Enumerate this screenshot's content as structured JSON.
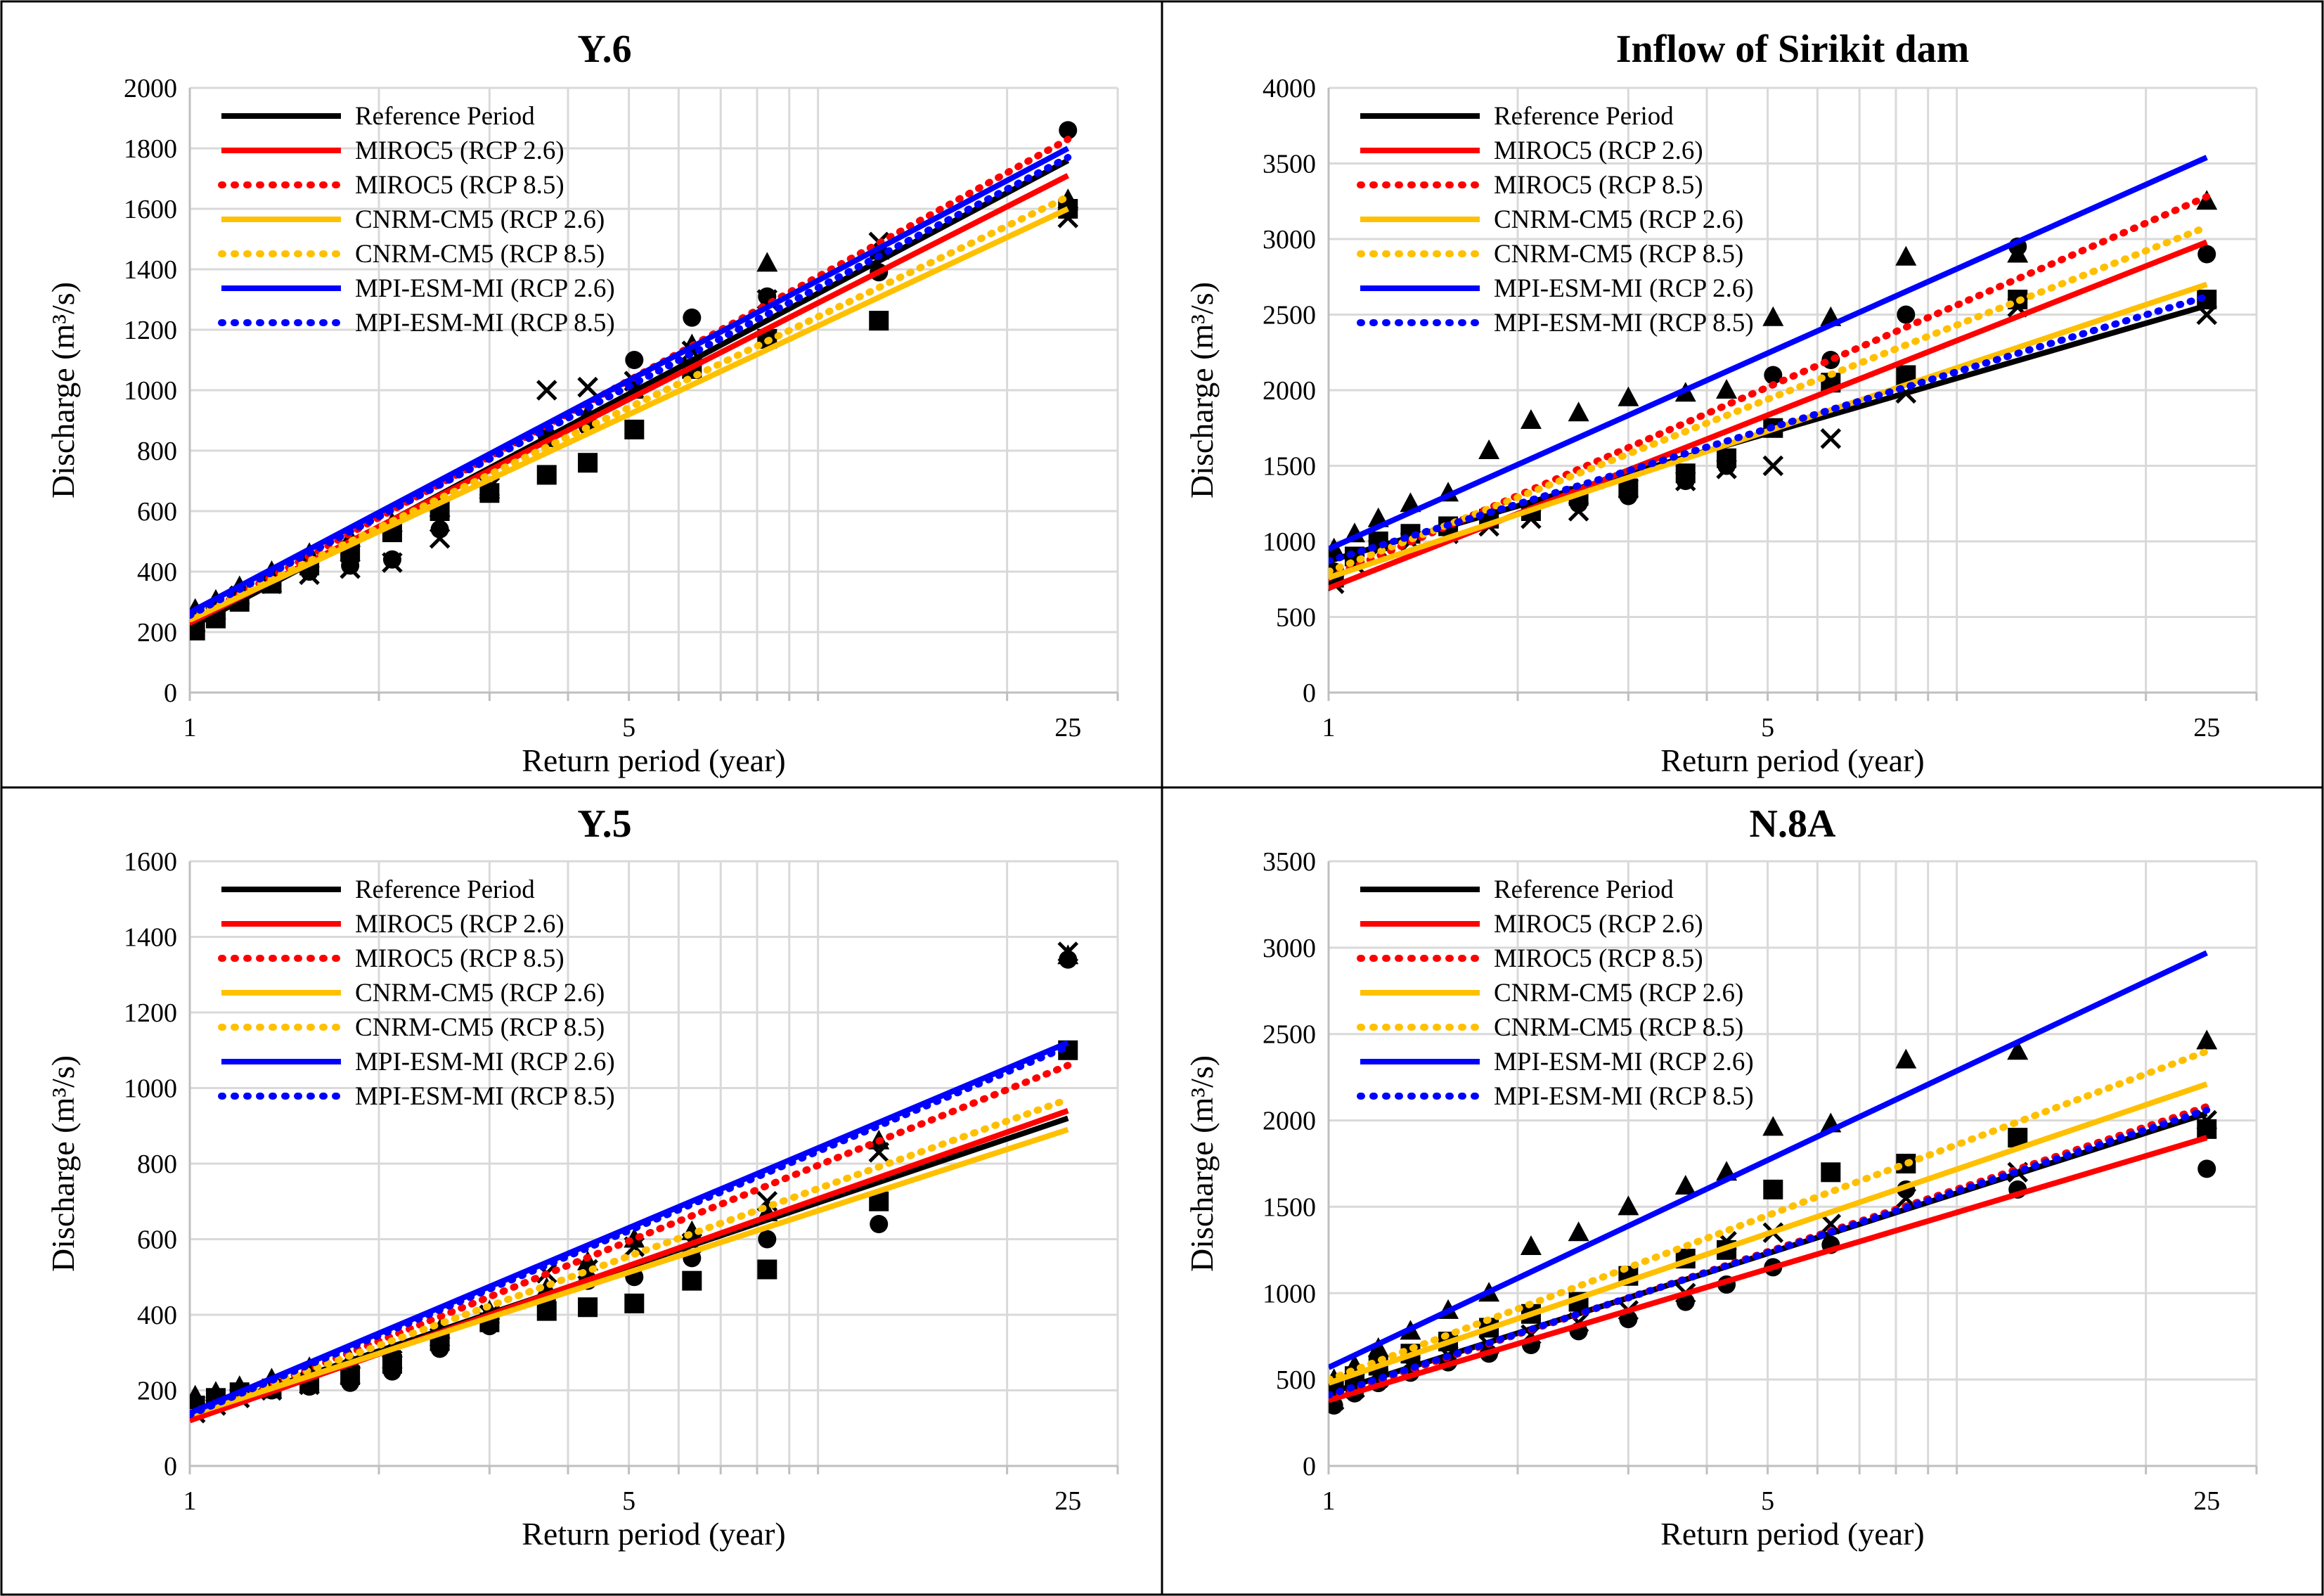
{
  "colors": {
    "reference": "#000000",
    "miroc5": "#ff0000",
    "cnrm": "#ffc000",
    "mpi": "#0000ff",
    "grid": "#d9d9d9"
  },
  "chart_data": [
    {
      "type": "line",
      "title": "Y.6",
      "xlabel": "Return period (year)",
      "ylabel": "Discharge (m³/s)",
      "xscale": "log",
      "xlim": [
        1,
        30
      ],
      "xticks": [
        1,
        5,
        25
      ],
      "ylim": [
        0,
        2000
      ],
      "yticks": [
        0,
        200,
        400,
        600,
        800,
        1000,
        1200,
        1400,
        1600,
        1800,
        2000
      ],
      "grid": true,
      "legend_position": "top-left",
      "series": [
        {
          "name": "Reference Period",
          "color": "#000000",
          "dash": false,
          "x": [
            1,
            25
          ],
          "y": [
            215,
            1760
          ]
        },
        {
          "name": "MIROC5 (RCP 2.6)",
          "color": "#ff0000",
          "dash": false,
          "x": [
            1,
            25
          ],
          "y": [
            230,
            1710
          ]
        },
        {
          "name": "MIROC5 (RCP 8.5)",
          "color": "#ff0000",
          "dash": true,
          "x": [
            1,
            25
          ],
          "y": [
            235,
            1830
          ]
        },
        {
          "name": "CNRM-CM5 (RCP 2.6)",
          "color": "#ffc000",
          "dash": false,
          "x": [
            1,
            25
          ],
          "y": [
            240,
            1600
          ]
        },
        {
          "name": "CNRM-CM5 (RCP 8.5)",
          "color": "#ffc000",
          "dash": true,
          "x": [
            1,
            25
          ],
          "y": [
            245,
            1640
          ]
        },
        {
          "name": "MPI-ESM-MI (RCP 2.6)",
          "color": "#0000ff",
          "dash": false,
          "x": [
            1,
            25
          ],
          "y": [
            265,
            1800
          ]
        },
        {
          "name": "MPI-ESM-MI (RCP 8.5)",
          "color": "#0000ff",
          "dash": true,
          "x": [
            1,
            25
          ],
          "y": [
            255,
            1770
          ]
        }
      ],
      "observations": [
        {
          "marker": "square",
          "x": [
            1.02,
            1.1,
            1.2,
            1.35,
            1.55,
            1.8,
            2.1,
            2.5,
            3,
            3.7,
            4.3,
            5.1,
            6.3,
            8.3,
            12.5,
            25
          ],
          "y": [
            205,
            245,
            300,
            360,
            420,
            470,
            530,
            600,
            660,
            720,
            760,
            870,
            1070,
            1170,
            1230,
            1600
          ]
        },
        {
          "marker": "triangle",
          "x": [
            1.02,
            1.1,
            1.2,
            1.35,
            1.55,
            1.8,
            2.1,
            2.5,
            3,
            3.7,
            4.3,
            5.1,
            6.3,
            8.3,
            12.5,
            25
          ],
          "y": [
            275,
            305,
            350,
            400,
            460,
            510,
            560,
            610,
            670,
            840,
            920,
            1000,
            1150,
            1420,
            1460,
            1630
          ]
        },
        {
          "marker": "circle",
          "x": [
            1.02,
            1.1,
            1.2,
            1.35,
            1.55,
            1.8,
            2.1,
            2.5,
            3,
            3.7,
            4.3,
            5.1,
            6.3,
            8.3,
            12.5,
            25
          ],
          "y": [
            240,
            280,
            330,
            380,
            400,
            420,
            440,
            540,
            660,
            850,
            880,
            1100,
            1240,
            1310,
            1390,
            1860
          ]
        },
        {
          "marker": "cross",
          "x": [
            1.02,
            1.1,
            1.2,
            1.35,
            1.55,
            1.8,
            2.1,
            2.5,
            3,
            3.7,
            4.3,
            5.1,
            6.3,
            8.3,
            12.5,
            25
          ],
          "y": [
            230,
            270,
            320,
            360,
            390,
            410,
            430,
            510,
            680,
            1000,
            1010,
            1030,
            1130,
            1300,
            1490,
            1570
          ]
        }
      ]
    },
    {
      "type": "line",
      "title": "Inflow of Sirikit dam",
      "xlabel": "Return period (year)",
      "ylabel": "Discharge (m³/s)",
      "xscale": "log",
      "xlim": [
        1,
        30
      ],
      "xticks": [
        1,
        5,
        25
      ],
      "ylim": [
        0,
        4000
      ],
      "yticks": [
        0,
        500,
        1000,
        1500,
        2000,
        2500,
        3000,
        3500,
        4000
      ],
      "grid": true,
      "legend_position": "top-left",
      "series": [
        {
          "name": "Reference Period",
          "color": "#000000",
          "dash": false,
          "x": [
            1,
            25
          ],
          "y": [
            870,
            2560
          ]
        },
        {
          "name": "MIROC5 (RCP 2.6)",
          "color": "#ff0000",
          "dash": false,
          "x": [
            1,
            25
          ],
          "y": [
            690,
            2980
          ]
        },
        {
          "name": "MIROC5 (RCP 8.5)",
          "color": "#ff0000",
          "dash": true,
          "x": [
            1,
            25
          ],
          "y": [
            760,
            3280
          ]
        },
        {
          "name": "CNRM-CM5 (RCP 2.6)",
          "color": "#ffc000",
          "dash": false,
          "x": [
            1,
            25
          ],
          "y": [
            760,
            2700
          ]
        },
        {
          "name": "CNRM-CM5 (RCP 8.5)",
          "color": "#ffc000",
          "dash": true,
          "x": [
            1,
            25
          ],
          "y": [
            800,
            3080
          ]
        },
        {
          "name": "MPI-ESM-MI (RCP 2.6)",
          "color": "#0000ff",
          "dash": false,
          "x": [
            1,
            25
          ],
          "y": [
            950,
            3540
          ]
        },
        {
          "name": "MPI-ESM-MI (RCP 8.5)",
          "color": "#0000ff",
          "dash": true,
          "x": [
            1,
            25
          ],
          "y": [
            870,
            2620
          ]
        }
      ],
      "observations": [
        {
          "marker": "square",
          "x": [
            1.02,
            1.1,
            1.2,
            1.35,
            1.55,
            1.8,
            2.1,
            2.5,
            3,
            3.7,
            4.3,
            5.1,
            6.3,
            8.3,
            12.5,
            25
          ],
          "y": [
            760,
            900,
            1000,
            1050,
            1100,
            1150,
            1200,
            1300,
            1350,
            1450,
            1550,
            1750,
            2050,
            2100,
            2600,
            2600
          ]
        },
        {
          "marker": "triangle",
          "x": [
            1.02,
            1.1,
            1.2,
            1.35,
            1.55,
            1.8,
            2.1,
            2.5,
            3,
            3.7,
            4.3,
            5.1,
            6.3,
            8.3,
            12.5,
            25
          ],
          "y": [
            950,
            1050,
            1150,
            1250,
            1320,
            1600,
            1800,
            1850,
            1950,
            1980,
            2000,
            2480,
            2480,
            2880,
            2900,
            3250
          ]
        },
        {
          "marker": "circle",
          "x": [
            1.02,
            1.1,
            1.2,
            1.35,
            1.55,
            1.8,
            2.1,
            2.5,
            3,
            3.7,
            4.3,
            5.1,
            6.3,
            8.3,
            12.5,
            25
          ],
          "y": [
            800,
            900,
            1000,
            1050,
            1100,
            1150,
            1200,
            1250,
            1300,
            1400,
            1500,
            2100,
            2200,
            2500,
            2950,
            2900
          ]
        },
        {
          "marker": "cross",
          "x": [
            1.02,
            1.1,
            1.2,
            1.35,
            1.55,
            1.8,
            2.1,
            2.5,
            3,
            3.7,
            4.3,
            5.1,
            6.3,
            8.3,
            12.5,
            25
          ],
          "y": [
            720,
            850,
            950,
            1000,
            1050,
            1100,
            1150,
            1200,
            1350,
            1400,
            1480,
            1500,
            1680,
            1980,
            2550,
            2500
          ]
        }
      ]
    },
    {
      "type": "line",
      "title": "Y.5",
      "xlabel": "Return period (year)",
      "ylabel": "Discharge (m³/s)",
      "xscale": "log",
      "xlim": [
        1,
        30
      ],
      "xticks": [
        1,
        5,
        25
      ],
      "ylim": [
        0,
        1600
      ],
      "yticks": [
        0,
        200,
        400,
        600,
        800,
        1000,
        1200,
        1400,
        1600
      ],
      "grid": true,
      "legend_position": "top-left",
      "series": [
        {
          "name": "Reference Period",
          "color": "#000000",
          "dash": false,
          "x": [
            1,
            25
          ],
          "y": [
            135,
            920
          ]
        },
        {
          "name": "MIROC5 (RCP 2.6)",
          "color": "#ff0000",
          "dash": false,
          "x": [
            1,
            25
          ],
          "y": [
            120,
            940
          ]
        },
        {
          "name": "MIROC5 (RCP 8.5)",
          "color": "#ff0000",
          "dash": true,
          "x": [
            1,
            25
          ],
          "y": [
            130,
            1060
          ]
        },
        {
          "name": "CNRM-CM5 (RCP 2.6)",
          "color": "#ffc000",
          "dash": false,
          "x": [
            1,
            25
          ],
          "y": [
            135,
            890
          ]
        },
        {
          "name": "CNRM-CM5 (RCP 8.5)",
          "color": "#ffc000",
          "dash": true,
          "x": [
            1,
            25
          ],
          "y": [
            140,
            970
          ]
        },
        {
          "name": "MPI-ESM-MI (RCP 2.6)",
          "color": "#0000ff",
          "dash": false,
          "x": [
            1,
            25
          ],
          "y": [
            140,
            1120
          ]
        },
        {
          "name": "MPI-ESM-MI (RCP 8.5)",
          "color": "#0000ff",
          "dash": true,
          "x": [
            1,
            25
          ],
          "y": [
            135,
            1110
          ]
        }
      ],
      "observations": [
        {
          "marker": "square",
          "x": [
            1.02,
            1.1,
            1.2,
            1.35,
            1.55,
            1.8,
            2.1,
            2.5,
            3,
            3.7,
            4.3,
            5.1,
            6.3,
            8.3,
            12.5,
            25
          ],
          "y": [
            160,
            180,
            195,
            205,
            220,
            240,
            270,
            330,
            380,
            410,
            420,
            430,
            490,
            520,
            700,
            1100
          ]
        },
        {
          "marker": "triangle",
          "x": [
            1.02,
            1.1,
            1.2,
            1.35,
            1.55,
            1.8,
            2.1,
            2.5,
            3,
            3.7,
            4.3,
            5.1,
            6.3,
            8.3,
            12.5,
            25
          ],
          "y": [
            185,
            195,
            210,
            230,
            260,
            280,
            310,
            360,
            410,
            470,
            540,
            600,
            620,
            670,
            860,
            1350
          ]
        },
        {
          "marker": "circle",
          "x": [
            1.02,
            1.1,
            1.2,
            1.35,
            1.55,
            1.8,
            2.1,
            2.5,
            3,
            3.7,
            4.3,
            5.1,
            6.3,
            8.3,
            12.5,
            25
          ],
          "y": [
            150,
            170,
            185,
            200,
            210,
            220,
            250,
            310,
            370,
            440,
            490,
            500,
            550,
            600,
            640,
            1340
          ]
        },
        {
          "marker": "cross",
          "x": [
            1.02,
            1.1,
            1.2,
            1.35,
            1.55,
            1.8,
            2.1,
            2.5,
            3,
            3.7,
            4.3,
            5.1,
            6.3,
            8.3,
            12.5,
            25
          ],
          "y": [
            140,
            160,
            180,
            200,
            215,
            240,
            280,
            340,
            400,
            510,
            520,
            580,
            590,
            700,
            830,
            1360
          ]
        }
      ]
    },
    {
      "type": "line",
      "title": "N.8A",
      "xlabel": "Return period (year)",
      "ylabel": "Discharge (m³/s)",
      "xscale": "log",
      "xlim": [
        1,
        30
      ],
      "xticks": [
        1,
        5,
        25
      ],
      "ylim": [
        0,
        3500
      ],
      "yticks": [
        0,
        500,
        1000,
        1500,
        2000,
        2500,
        3000,
        3500
      ],
      "grid": true,
      "legend_position": "top-left",
      "series": [
        {
          "name": "Reference Period",
          "color": "#000000",
          "dash": false,
          "x": [
            1,
            25
          ],
          "y": [
            420,
            2040
          ]
        },
        {
          "name": "MIROC5 (RCP 2.6)",
          "color": "#ff0000",
          "dash": false,
          "x": [
            1,
            25
          ],
          "y": [
            380,
            1900
          ]
        },
        {
          "name": "MIROC5 (RCP 8.5)",
          "color": "#ff0000",
          "dash": true,
          "x": [
            1,
            25
          ],
          "y": [
            400,
            2080
          ]
        },
        {
          "name": "CNRM-CM5 (RCP 2.6)",
          "color": "#ffc000",
          "dash": false,
          "x": [
            1,
            25
          ],
          "y": [
            480,
            2210
          ]
        },
        {
          "name": "CNRM-CM5 (RCP 8.5)",
          "color": "#ffc000",
          "dash": true,
          "x": [
            1,
            25
          ],
          "y": [
            500,
            2400
          ]
        },
        {
          "name": "MPI-ESM-MI (RCP 2.6)",
          "color": "#0000ff",
          "dash": false,
          "x": [
            1,
            25
          ],
          "y": [
            570,
            2970
          ]
        },
        {
          "name": "MPI-ESM-MI (RCP 8.5)",
          "color": "#0000ff",
          "dash": true,
          "x": [
            1,
            25
          ],
          "y": [
            410,
            2060
          ]
        }
      ],
      "observations": [
        {
          "marker": "square",
          "x": [
            1.02,
            1.1,
            1.2,
            1.35,
            1.55,
            1.8,
            2.1,
            2.5,
            3,
            3.7,
            4.3,
            5.1,
            6.3,
            8.3,
            12.5,
            25
          ],
          "y": [
            450,
            520,
            580,
            650,
            720,
            800,
            880,
            950,
            1100,
            1200,
            1250,
            1600,
            1700,
            1750,
            1900,
            1950
          ]
        },
        {
          "marker": "triangle",
          "x": [
            1.02,
            1.1,
            1.2,
            1.35,
            1.55,
            1.8,
            2.1,
            2.5,
            3,
            3.7,
            4.3,
            5.1,
            6.3,
            8.3,
            12.5,
            25
          ],
          "y": [
            500,
            580,
            680,
            780,
            900,
            1000,
            1270,
            1350,
            1500,
            1620,
            1700,
            1960,
            1980,
            2350,
            2400,
            2460
          ]
        },
        {
          "marker": "circle",
          "x": [
            1.02,
            1.1,
            1.2,
            1.35,
            1.55,
            1.8,
            2.1,
            2.5,
            3,
            3.7,
            4.3,
            5.1,
            6.3,
            8.3,
            12.5,
            25
          ],
          "y": [
            350,
            420,
            480,
            540,
            600,
            650,
            700,
            780,
            850,
            950,
            1050,
            1150,
            1280,
            1600,
            1600,
            1720
          ]
        },
        {
          "marker": "cross",
          "x": [
            1.02,
            1.1,
            1.2,
            1.35,
            1.55,
            1.8,
            2.1,
            2.5,
            3,
            3.7,
            4.3,
            5.1,
            6.3,
            8.3,
            12.5,
            25
          ],
          "y": [
            380,
            450,
            510,
            580,
            640,
            700,
            760,
            830,
            900,
            1000,
            1300,
            1350,
            1400,
            1550,
            1700,
            2000
          ]
        }
      ]
    }
  ]
}
